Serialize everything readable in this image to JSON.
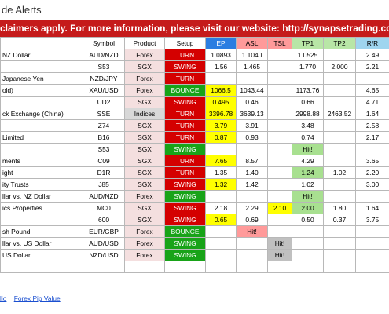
{
  "title": "de Alerts",
  "banner": "claimers apply. For more information, please visit our website: http://synapsetrading.com/disclaimer/",
  "headers": {
    "name": "",
    "symbol": "Symbol",
    "product": "Product",
    "setup": "Setup",
    "ep": "EP",
    "asl": "ASL",
    "tsl": "TSL",
    "tp1": "TP1",
    "tp2": "TP2",
    "rr": "R/R"
  },
  "rows": [
    {
      "name": "NZ Dollar",
      "symbol": "AUD/NZD",
      "product": "Forex",
      "setup": "TURN",
      "ep": "1.0893",
      "asl": "1.1040",
      "tsl": "",
      "tp1": "1.0525",
      "tp2": "",
      "rr": "2.49"
    },
    {
      "name": "",
      "symbol": "S53",
      "product": "SGX",
      "setup": "SWING",
      "ep": "1.56",
      "asl": "1.465",
      "tsl": "",
      "tp1": "1.770",
      "tp2": "2.000",
      "rr": "2.21"
    },
    {
      "name": "Japanese Yen",
      "symbol": "NZD/JPY",
      "product": "Forex",
      "setup": "TURN",
      "ep": "",
      "asl": "",
      "tsl": "",
      "tp1": "",
      "tp2": "",
      "rr": ""
    },
    {
      "name": "old)",
      "symbol": "XAU/USD",
      "product": "Forex",
      "setup": "BOUNCE",
      "ep": "1066.5",
      "asl": "1043.44",
      "tsl": "",
      "tp1": "1173.76",
      "tp2": "",
      "rr": "4.65"
    },
    {
      "name": "",
      "symbol": "UD2",
      "product": "SGX",
      "setup": "SWING",
      "ep": "0.495",
      "asl": "0.46",
      "tsl": "",
      "tp1": "0.66",
      "tp2": "",
      "rr": "4.71"
    },
    {
      "name": "ck Exchange (China)",
      "symbol": "SSE",
      "product": "Indices",
      "setup": "TURN",
      "ep": "3396.78",
      "asl": "3639.13",
      "tsl": "",
      "tp1": "2998.88",
      "tp2": "2463.52",
      "rr": "1.64"
    },
    {
      "name": "",
      "symbol": "Z74",
      "product": "SGX",
      "setup": "TURN",
      "ep": "3.79",
      "asl": "3.91",
      "tsl": "",
      "tp1": "3.48",
      "tp2": "",
      "rr": "2.58"
    },
    {
      "name": "Limited",
      "symbol": "B16",
      "product": "SGX",
      "setup": "TURN",
      "ep": "0.87",
      "asl": "0.93",
      "tsl": "",
      "tp1": "0.74",
      "tp2": "",
      "rr": "2.17"
    },
    {
      "name": "",
      "symbol": "S53",
      "product": "SGX",
      "setup": "SWING",
      "ep": "",
      "asl": "",
      "tsl": "",
      "tp1": "Hit!",
      "tp2": "",
      "rr": ""
    },
    {
      "name": "ments",
      "symbol": "C09",
      "product": "SGX",
      "setup": "TURN",
      "ep": "7.65",
      "asl": "8.57",
      "tsl": "",
      "tp1": "4.29",
      "tp2": "",
      "rr": "3.65"
    },
    {
      "name": "ight",
      "symbol": "D1R",
      "product": "SGX",
      "setup": "TURN",
      "ep": "1.35",
      "asl": "1.40",
      "tsl": "",
      "tp1": "1.24",
      "tp2": "1.02",
      "rr": "2.20"
    },
    {
      "name": "ity Trusts",
      "symbol": "J85",
      "product": "SGX",
      "setup": "SWING",
      "ep": "1.32",
      "asl": "1.42",
      "tsl": "",
      "tp1": "1.02",
      "tp2": "",
      "rr": "3.00"
    },
    {
      "name": "llar vs. NZ Dollar",
      "symbol": "AUD/NZD",
      "product": "Forex",
      "setup": "SWING",
      "ep": "",
      "asl": "",
      "tsl": "",
      "tp1": "Hit!",
      "tp2": "",
      "rr": ""
    },
    {
      "name": "ics Properties",
      "symbol": "MC0",
      "product": "SGX",
      "setup": "SWING",
      "ep": "2.18",
      "asl": "2.29",
      "tsl": "2.10",
      "tp1": "2.00",
      "tp2": "1.80",
      "rr": "1.64"
    },
    {
      "name": "",
      "symbol": "600",
      "product": "SGX",
      "setup": "SWING",
      "ep": "0.65",
      "asl": "0.69",
      "tsl": "",
      "tp1": "0.50",
      "tp2": "0.37",
      "rr": "3.75"
    },
    {
      "name": "sh Pound",
      "symbol": "EUR/GBP",
      "product": "Forex",
      "setup": "BOUNCE",
      "ep": "",
      "asl": "Hit!",
      "tsl": "",
      "tp1": "",
      "tp2": "",
      "rr": ""
    },
    {
      "name": "llar vs. US Dollar",
      "symbol": "AUD/USD",
      "product": "Forex",
      "setup": "SWING",
      "ep": "",
      "asl": "",
      "tsl": "Hit!",
      "tp1": "",
      "tp2": "",
      "rr": ""
    },
    {
      "name": "US Dollar",
      "symbol": "NZD/USD",
      "product": "Forex",
      "setup": "SWING",
      "ep": "",
      "asl": "",
      "tsl": "Hit!",
      "tp1": "",
      "tp2": "",
      "rr": ""
    },
    {
      "name": "",
      "symbol": "",
      "product": "",
      "setup": "",
      "ep": "",
      "asl": "",
      "tsl": "",
      "tp1": "",
      "tp2": "",
      "rr": ""
    }
  ],
  "footer": {
    "link1": "lio",
    "link2": "Forex Pip Value"
  },
  "colors": {
    "banner": "#c51b1b",
    "setup_red": "#d40000",
    "setup_green": "#18a318",
    "highlight_yellow": "#ffff00",
    "highlight_green": "#a8e090",
    "highlight_pink": "#ff9a9a",
    "highlight_grey": "#c0c0c0"
  },
  "cell_styles": {
    "3": {
      "ep": "yellow"
    },
    "4": {
      "ep": "yellow"
    },
    "5": {
      "ep": "yellow"
    },
    "6": {
      "ep": "yellow"
    },
    "7": {
      "ep": "yellow"
    },
    "8": {
      "tp1": "green"
    },
    "9": {
      "ep": "yellow"
    },
    "10": {
      "tp1": "green"
    },
    "11": {
      "ep": "yellow"
    },
    "12": {
      "tp1": "green"
    },
    "13": {
      "tsl": "yellow",
      "tp1": "green"
    },
    "14": {
      "ep": "yellow"
    },
    "15": {
      "asl": "pink"
    },
    "16": {
      "tsl": "grey"
    },
    "17": {
      "tsl": "grey"
    }
  }
}
